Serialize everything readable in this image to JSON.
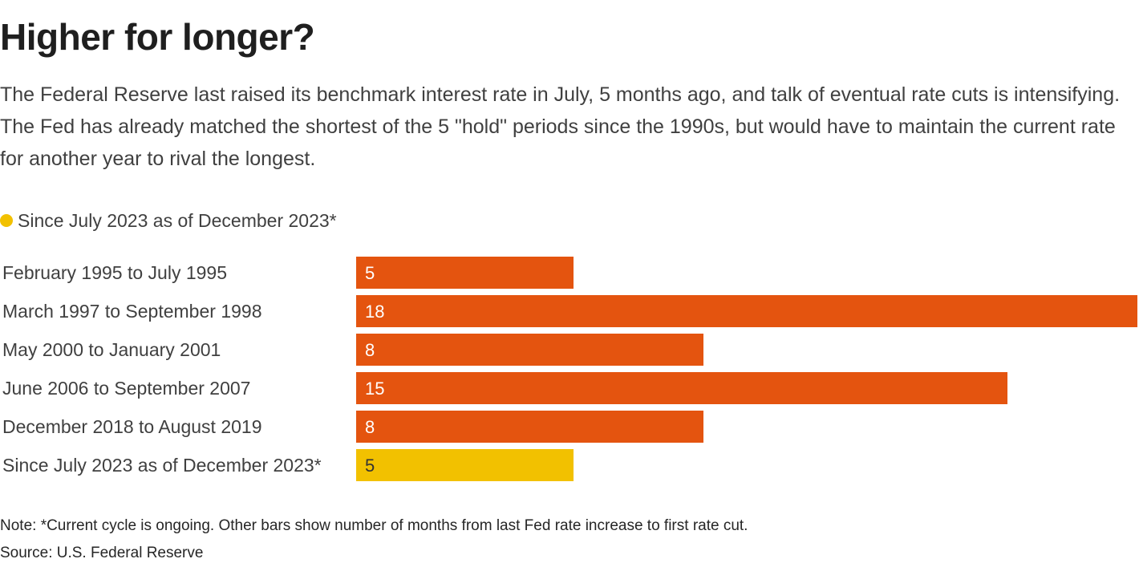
{
  "header": {
    "title": "Higher for longer?",
    "subtitle": "The Federal Reserve last raised its benchmark interest rate in July, 5 months ago, and talk of eventual rate cuts is intensifying. The Fed has already matched the shortest of the 5 \"hold\" periods since the 1990s, but would have to maintain the current rate for another year to rival the longest."
  },
  "legend": {
    "label": "Since July 2023 as of December 2023*",
    "color": "#f2c100"
  },
  "colors": {
    "past": "#e4540f",
    "current": "#f2c100",
    "value_on_past": "#ffffff",
    "value_on_current": "#333333"
  },
  "chart_data": {
    "type": "bar",
    "orientation": "horizontal",
    "categories": [
      "February 1995 to July 1995",
      "March 1997 to September 1998",
      "May 2000 to January 2001",
      "June 2006 to September 2007",
      "December 2018 to August 2019",
      "Since July 2023 as of December 2023*"
    ],
    "values": [
      5,
      18,
      8,
      15,
      8,
      5
    ],
    "highlight": [
      false,
      false,
      false,
      false,
      false,
      true
    ],
    "xlim": [
      0,
      18
    ],
    "grid": false
  },
  "footer": {
    "note": "Note: *Current cycle is ongoing. Other bars show number of months from last Fed rate increase to first rate cut.",
    "source": "Source: U.S. Federal Reserve"
  }
}
